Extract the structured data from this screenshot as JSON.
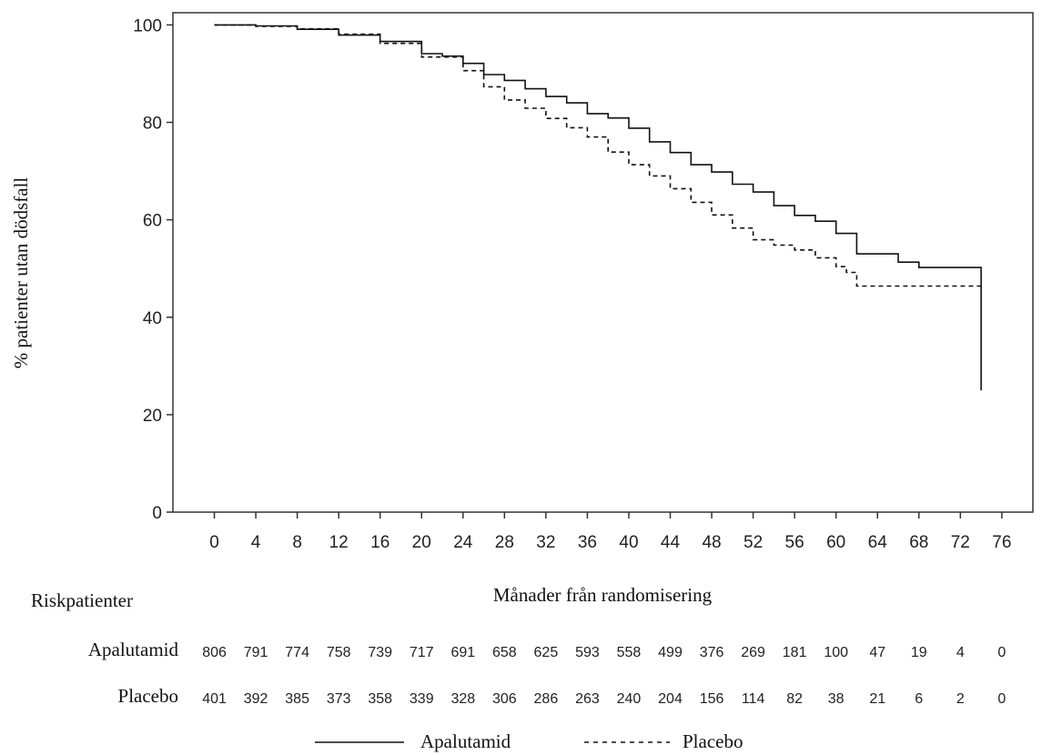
{
  "chart_data": {
    "type": "line",
    "xlabel": "Månader från randomisering",
    "ylabel": "% patienter utan dödsfall",
    "xlim": [
      -4,
      79
    ],
    "ylim": [
      0,
      102.5
    ],
    "x_ticks": [
      0,
      4,
      8,
      12,
      16,
      20,
      24,
      28,
      32,
      36,
      40,
      44,
      48,
      52,
      56,
      60,
      64,
      68,
      72,
      76
    ],
    "y_ticks": [
      0,
      20,
      40,
      60,
      80,
      100
    ],
    "legend_position": "bottom-center",
    "grid": false,
    "series": [
      {
        "name": "Apalutamid",
        "style": "solid",
        "color": "#111111",
        "points": [
          [
            0,
            100
          ],
          [
            4,
            99.8
          ],
          [
            8,
            99.1
          ],
          [
            12,
            97.9
          ],
          [
            16,
            96.6
          ],
          [
            20,
            94.1
          ],
          [
            22,
            93.6
          ],
          [
            24,
            92.1
          ],
          [
            26,
            89.8
          ],
          [
            28,
            88.6
          ],
          [
            30,
            86.9
          ],
          [
            32,
            85.3
          ],
          [
            34,
            84.0
          ],
          [
            36,
            81.8
          ],
          [
            38,
            80.9
          ],
          [
            40,
            78.8
          ],
          [
            42,
            76.0
          ],
          [
            44,
            73.8
          ],
          [
            46,
            71.3
          ],
          [
            48,
            69.8
          ],
          [
            50,
            67.3
          ],
          [
            52,
            65.7
          ],
          [
            54,
            62.9
          ],
          [
            56,
            60.9
          ],
          [
            58,
            59.7
          ],
          [
            60,
            57.2
          ],
          [
            62,
            53.0
          ],
          [
            64,
            53.0
          ],
          [
            66,
            51.3
          ],
          [
            68,
            50.2
          ],
          [
            70,
            50.2
          ],
          [
            72,
            50.2
          ],
          [
            74,
            50.2
          ],
          [
            74,
            25.0
          ]
        ]
      },
      {
        "name": "Placebo",
        "style": "dashed",
        "color": "#111111",
        "points": [
          [
            0,
            100
          ],
          [
            4,
            99.7
          ],
          [
            8,
            99.2
          ],
          [
            12,
            98.1
          ],
          [
            16,
            96.2
          ],
          [
            20,
            93.4
          ],
          [
            24,
            90.6
          ],
          [
            26,
            87.3
          ],
          [
            28,
            84.6
          ],
          [
            30,
            82.9
          ],
          [
            32,
            80.8
          ],
          [
            34,
            78.9
          ],
          [
            36,
            77.0
          ],
          [
            38,
            73.9
          ],
          [
            40,
            71.3
          ],
          [
            42,
            69.0
          ],
          [
            44,
            66.4
          ],
          [
            46,
            63.6
          ],
          [
            48,
            61.0
          ],
          [
            50,
            58.3
          ],
          [
            52,
            55.9
          ],
          [
            54,
            54.8
          ],
          [
            56,
            53.8
          ],
          [
            58,
            52.2
          ],
          [
            60,
            50.4
          ],
          [
            61,
            49.2
          ],
          [
            62,
            46.4
          ],
          [
            64,
            46.4
          ],
          [
            68,
            46.4
          ],
          [
            72,
            46.4
          ],
          [
            74,
            46.4
          ]
        ]
      }
    ],
    "risk_table": {
      "title": "Riskpatienter",
      "rows": [
        {
          "name": "Apalutamid",
          "values": [
            806,
            791,
            774,
            758,
            739,
            717,
            691,
            658,
            625,
            593,
            558,
            499,
            376,
            269,
            181,
            100,
            47,
            19,
            4,
            0
          ]
        },
        {
          "name": "Placebo",
          "values": [
            401,
            392,
            385,
            373,
            358,
            339,
            328,
            306,
            286,
            263,
            240,
            204,
            156,
            114,
            82,
            38,
            21,
            6,
            2,
            0
          ]
        }
      ]
    }
  }
}
